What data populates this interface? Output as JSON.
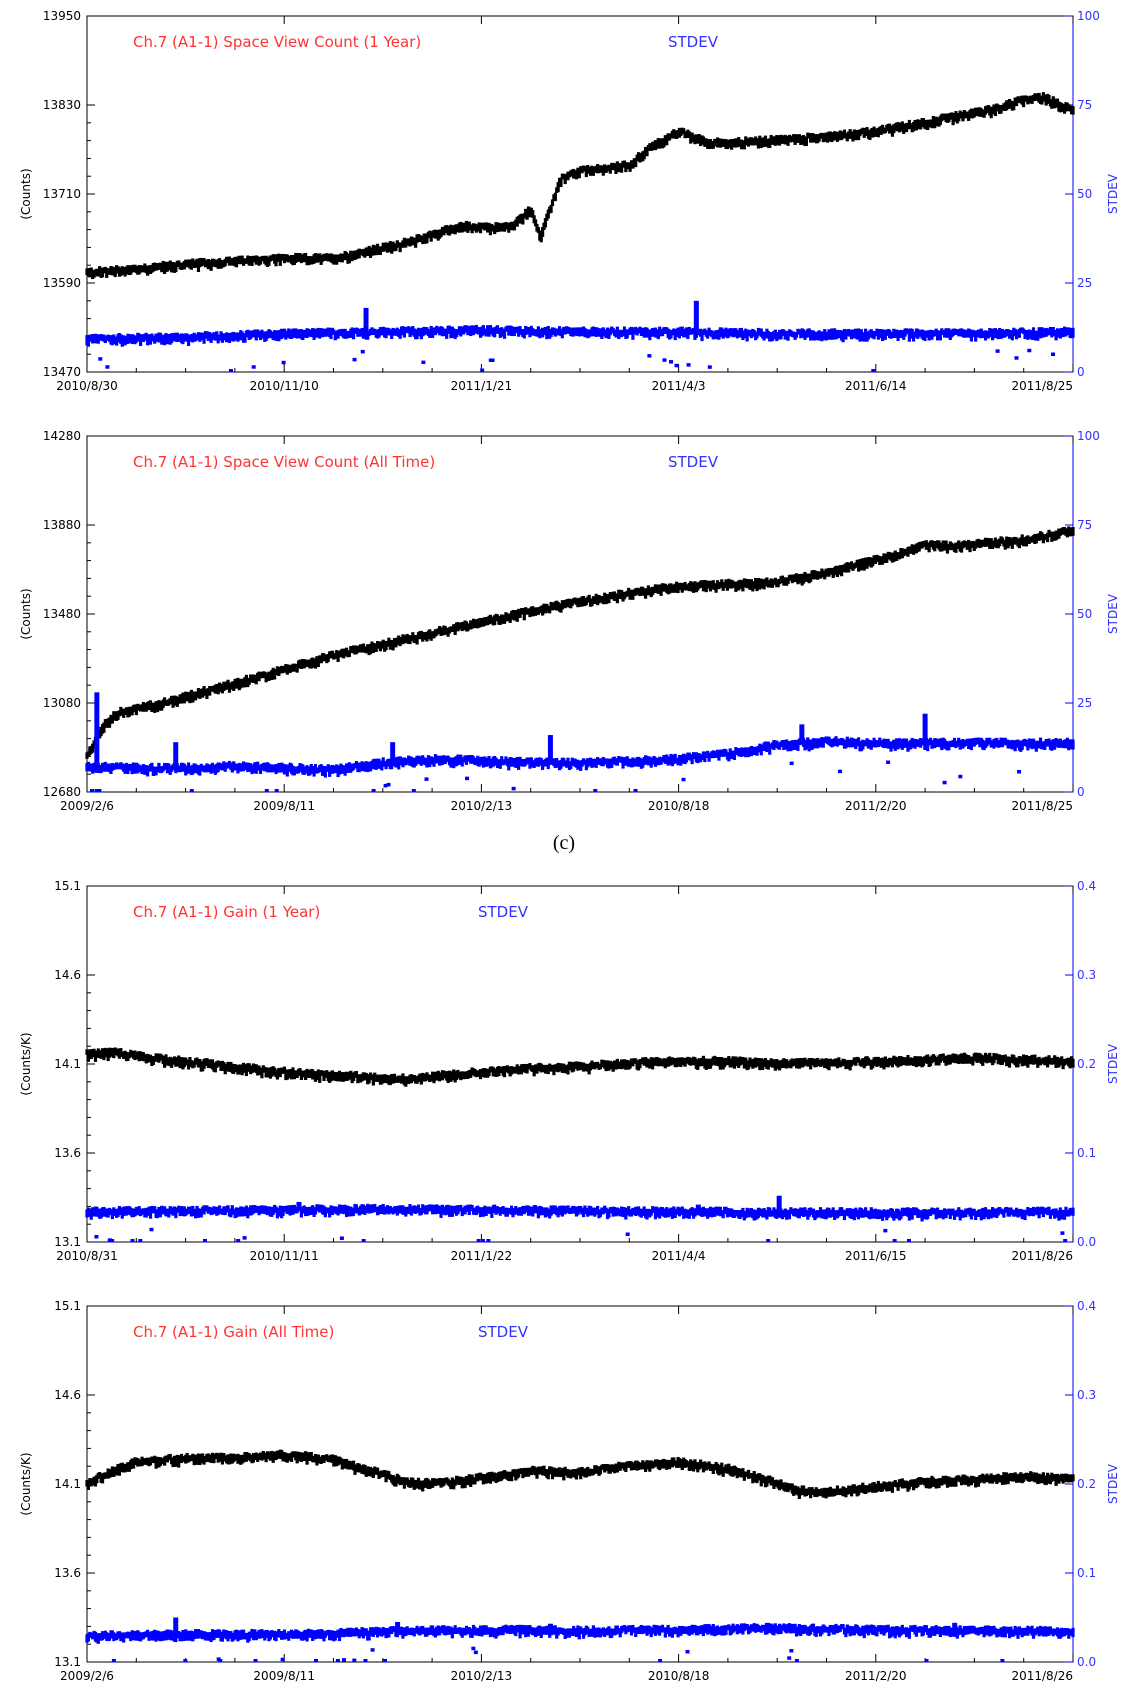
{
  "caption": "(c)",
  "colors": {
    "primary": "#000000",
    "stdev": "#0000ff",
    "title": "#ff3333",
    "stdev_axis": "#3333ff"
  },
  "chart_data": [
    {
      "type": "scatter",
      "title": "Ch.7 (A1-1) Space View Count (1 Year)",
      "stdev_label": "STDEV",
      "ylabel_left": "(Counts)",
      "ylabel_right": "STDEV",
      "ylim_left": [
        13470,
        13950
      ],
      "ylim_right": [
        0,
        100
      ],
      "yticks_left": [
        "13470",
        "13590",
        "13710",
        "13830",
        "13950"
      ],
      "yticks_right": [
        "0",
        "25",
        "50",
        "75",
        "100"
      ],
      "xticks": [
        "2010/8/30",
        "2010/11/10",
        "2011/1/21",
        "2011/4/3",
        "2011/6/14",
        "2011/8/25"
      ],
      "series": [
        {
          "name": "Counts",
          "axis": "left",
          "x": [
            0,
            0.05,
            0.1,
            0.15,
            0.2,
            0.25,
            0.29,
            0.33,
            0.35,
            0.38,
            0.4,
            0.43,
            0.44,
            0.45,
            0.46,
            0.48,
            0.5,
            0.52,
            0.55,
            0.57,
            0.6,
            0.63,
            0.65,
            0.68,
            0.72,
            0.76,
            0.8,
            0.84,
            0.88,
            0.92,
            0.95,
            0.97,
            1.0
          ],
          "values": [
            13603,
            13608,
            13614,
            13618,
            13622,
            13622,
            13633,
            13645,
            13654,
            13666,
            13663,
            13665,
            13675,
            13690,
            13650,
            13728,
            13740,
            13742,
            13748,
            13770,
            13793,
            13778,
            13778,
            13780,
            13783,
            13788,
            13793,
            13803,
            13813,
            13823,
            13836,
            13839,
            13822
          ]
        },
        {
          "name": "STDEV",
          "axis": "right",
          "x": [
            0,
            0.1,
            0.2,
            0.3,
            0.4,
            0.5,
            0.6,
            0.7,
            0.8,
            0.9,
            1.0
          ],
          "values": [
            9,
            9.5,
            10.5,
            11,
            11.5,
            11,
            11,
            10.5,
            10.5,
            10.5,
            11
          ],
          "spikes": [
            {
              "x": 0.283,
              "value": 18
            },
            {
              "x": 0.618,
              "value": 20
            }
          ]
        }
      ]
    },
    {
      "type": "scatter",
      "title": "Ch.7 (A1-1) Space View Count (All Time)",
      "stdev_label": "STDEV",
      "ylabel_left": "(Counts)",
      "ylabel_right": "STDEV",
      "ylim_left": [
        12680,
        14280
      ],
      "ylim_right": [
        0,
        100
      ],
      "yticks_left": [
        "12680",
        "13080",
        "13480",
        "13880",
        "14280"
      ],
      "yticks_right": [
        "0",
        "25",
        "50",
        "75",
        "100"
      ],
      "xticks": [
        "2009/2/6",
        "2009/8/11",
        "2010/2/13",
        "2010/8/18",
        "2011/2/20",
        "2011/8/25"
      ],
      "series": [
        {
          "name": "Counts",
          "axis": "left",
          "x": [
            0,
            0.01,
            0.02,
            0.03,
            0.05,
            0.08,
            0.12,
            0.18,
            0.25,
            0.3,
            0.35,
            0.4,
            0.45,
            0.5,
            0.55,
            0.6,
            0.65,
            0.7,
            0.75,
            0.8,
            0.82,
            0.85,
            0.88,
            0.9,
            0.95,
            1.0
          ],
          "values": [
            12840,
            12920,
            12990,
            13030,
            13050,
            13080,
            13130,
            13200,
            13290,
            13340,
            13390,
            13440,
            13490,
            13530,
            13570,
            13600,
            13610,
            13620,
            13660,
            13720,
            13740,
            13790,
            13780,
            13790,
            13810,
            13850
          ]
        },
        {
          "name": "STDEV",
          "axis": "right",
          "x": [
            0,
            0.05,
            0.1,
            0.15,
            0.2,
            0.25,
            0.3,
            0.35,
            0.4,
            0.45,
            0.5,
            0.55,
            0.6,
            0.65,
            0.7,
            0.75,
            0.8,
            0.85,
            0.9,
            0.95,
            1.0
          ],
          "values": [
            7,
            6.5,
            6.5,
            7,
            6.5,
            6,
            8,
            9,
            8.5,
            8,
            8,
            8.5,
            9,
            10.5,
            13,
            14,
            13.5,
            13.5,
            13.5,
            13.5,
            13.5
          ],
          "spikes": [
            {
              "x": 0.01,
              "value": 28
            },
            {
              "x": 0.09,
              "value": 14
            },
            {
              "x": 0.31,
              "value": 14
            },
            {
              "x": 0.47,
              "value": 16
            },
            {
              "x": 0.725,
              "value": 19
            },
            {
              "x": 0.85,
              "value": 22
            }
          ]
        }
      ]
    },
    {
      "type": "scatter",
      "title": "Ch.7 (A1-1) Gain (1 Year)",
      "stdev_label": "STDEV",
      "ylabel_left": "(Counts/K)",
      "ylabel_right": "STDEV",
      "ylim_left": [
        13.1,
        15.1
      ],
      "ylim_right": [
        0.0,
        0.4
      ],
      "yticks_left": [
        "13.1",
        "13.6",
        "14.1",
        "14.6",
        "15.1"
      ],
      "yticks_right": [
        "0.0",
        "0.1",
        "0.2",
        "0.3",
        "0.4"
      ],
      "xticks": [
        "2010/8/31",
        "2010/11/11",
        "2011/1/22",
        "2011/4/4",
        "2011/6/15",
        "2011/8/26"
      ],
      "series": [
        {
          "name": "Counts/K",
          "axis": "left",
          "x": [
            0,
            0.03,
            0.06,
            0.1,
            0.15,
            0.2,
            0.25,
            0.3,
            0.33,
            0.36,
            0.4,
            0.45,
            0.5,
            0.55,
            0.6,
            0.65,
            0.7,
            0.75,
            0.8,
            0.85,
            0.9,
            0.95,
            1.0
          ],
          "values": [
            14.15,
            14.16,
            14.13,
            14.11,
            14.08,
            14.05,
            14.03,
            14.02,
            14.01,
            14.03,
            14.05,
            14.07,
            14.08,
            14.1,
            14.11,
            14.11,
            14.1,
            14.1,
            14.11,
            14.12,
            14.13,
            14.12,
            14.11
          ]
        },
        {
          "name": "STDEV",
          "axis": "right",
          "x": [
            0,
            0.1,
            0.2,
            0.3,
            0.4,
            0.5,
            0.6,
            0.7,
            0.8,
            0.9,
            1.0
          ],
          "values": [
            0.033,
            0.034,
            0.035,
            0.036,
            0.035,
            0.034,
            0.033,
            0.032,
            0.032,
            0.032,
            0.033
          ],
          "spikes": [
            {
              "x": 0.215,
              "value": 0.045
            },
            {
              "x": 0.62,
              "value": 0.042
            },
            {
              "x": 0.702,
              "value": 0.052
            }
          ]
        }
      ]
    },
    {
      "type": "scatter",
      "title": "Ch.7 (A1-1) Gain (All Time)",
      "stdev_label": "STDEV",
      "ylabel_left": "(Counts/K)",
      "ylabel_right": "STDEV",
      "ylim_left": [
        13.1,
        15.1
      ],
      "ylim_right": [
        0.0,
        0.4
      ],
      "yticks_left": [
        "13.1",
        "13.6",
        "14.1",
        "14.6",
        "15.1"
      ],
      "yticks_right": [
        "0.0",
        "0.1",
        "0.2",
        "0.3",
        "0.4"
      ],
      "xticks": [
        "2009/2/6",
        "2009/8/11",
        "2010/2/13",
        "2010/8/18",
        "2011/2/20",
        "2011/8/26"
      ],
      "series": [
        {
          "name": "Counts/K",
          "axis": "left",
          "x": [
            0,
            0.02,
            0.05,
            0.1,
            0.15,
            0.2,
            0.22,
            0.25,
            0.3,
            0.33,
            0.36,
            0.4,
            0.45,
            0.5,
            0.55,
            0.6,
            0.65,
            0.7,
            0.72,
            0.75,
            0.8,
            0.85,
            0.9,
            0.95,
            1.0
          ],
          "values": [
            14.1,
            14.15,
            14.22,
            14.24,
            14.24,
            14.26,
            14.25,
            14.23,
            14.15,
            14.1,
            14.1,
            14.13,
            14.17,
            14.16,
            14.2,
            14.22,
            14.18,
            14.1,
            14.06,
            14.05,
            14.08,
            14.11,
            14.12,
            14.14,
            14.12
          ]
        },
        {
          "name": "STDEV",
          "axis": "right",
          "x": [
            0,
            0.1,
            0.2,
            0.3,
            0.4,
            0.5,
            0.6,
            0.7,
            0.8,
            0.9,
            1.0
          ],
          "values": [
            0.028,
            0.03,
            0.03,
            0.033,
            0.035,
            0.034,
            0.035,
            0.037,
            0.035,
            0.034,
            0.034
          ],
          "spikes": [
            {
              "x": 0.09,
              "value": 0.05
            },
            {
              "x": 0.315,
              "value": 0.045
            },
            {
              "x": 0.47,
              "value": 0.043
            },
            {
              "x": 0.69,
              "value": 0.044
            },
            {
              "x": 0.85,
              "value": 0.04
            },
            {
              "x": 0.88,
              "value": 0.044
            }
          ]
        }
      ]
    }
  ]
}
